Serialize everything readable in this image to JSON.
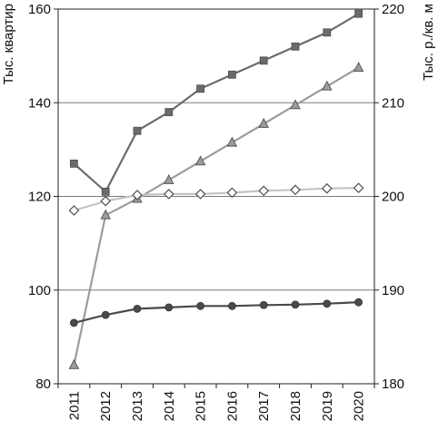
{
  "chart_data": {
    "type": "line",
    "title": "",
    "x": [
      2011,
      2012,
      2013,
      2014,
      2015,
      2016,
      2017,
      2018,
      2019,
      2020
    ],
    "x_tick_labels": [
      "2011",
      "2012",
      "2013",
      "2014",
      "2015",
      "2016",
      "2017",
      "2018",
      "2019",
      "2020"
    ],
    "ylabel_left": "Тыс. квартир",
    "ylabel_right": "Тыс. р./кв. м",
    "ylim_left": [
      80,
      160
    ],
    "ylim_right": [
      180,
      220
    ],
    "yticks_left": [
      "80",
      "100",
      "120",
      "140",
      "160"
    ],
    "yticks_right": [
      "180",
      "190",
      "200",
      "210",
      "220"
    ],
    "grid": "horizontal",
    "legend": "none",
    "series": [
      {
        "axis": "left",
        "marker": "square",
        "color": "#6b6b6b",
        "values": [
          127,
          121,
          134,
          138,
          143,
          146,
          149,
          152,
          155,
          159
        ]
      },
      {
        "axis": "left",
        "marker": "triangle",
        "color": "#9c9c9c",
        "values": [
          84,
          116,
          119.5,
          123.5,
          127.5,
          131.5,
          135.5,
          139.5,
          143.5,
          147.5
        ]
      },
      {
        "axis": "left",
        "marker": "diamond",
        "color": "#c4c4c4",
        "values": [
          117,
          119,
          120.3,
          120.5,
          120.5,
          120.8,
          121.2,
          121.4,
          121.7,
          121.8
        ]
      },
      {
        "axis": "left",
        "marker": "circle",
        "color": "#4a4a4a",
        "values": [
          93,
          94.7,
          96,
          96.3,
          96.6,
          96.6,
          96.8,
          96.9,
          97.1,
          97.4
        ]
      }
    ]
  }
}
